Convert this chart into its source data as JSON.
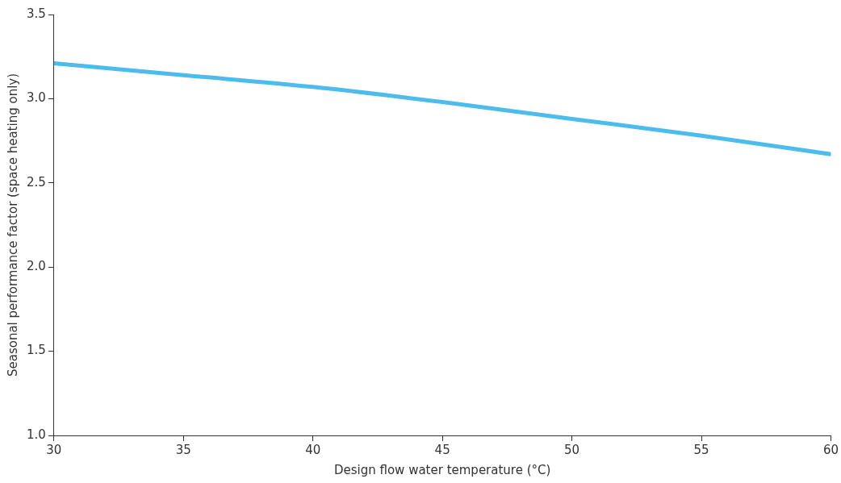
{
  "chart_data": {
    "type": "line",
    "xlabel": "Design flow water temperature (°C)",
    "ylabel": "Seasonal performance factor (space heating only)",
    "x": [
      30,
      35,
      40,
      45,
      50,
      55,
      60
    ],
    "series": [
      {
        "color": "#4bbcec",
        "values": [
          3.21,
          3.14,
          3.07,
          2.98,
          2.88,
          2.78,
          2.67
        ]
      }
    ],
    "xlim": [
      30,
      60
    ],
    "xticks": [
      30,
      35,
      40,
      45,
      50,
      55,
      60
    ],
    "ylim": [
      1.0,
      3.5
    ],
    "yticks": [
      {
        "value": 1.0,
        "label": "1.0"
      },
      {
        "value": 1.5,
        "label": "1.5"
      },
      {
        "value": 2.0,
        "label": "2.0"
      },
      {
        "value": 2.5,
        "label": "2.5"
      },
      {
        "value": 3.0,
        "label": "3.0"
      },
      {
        "value": 3.5,
        "label": "3.5"
      }
    ],
    "grid": false,
    "legend": false,
    "marker": "none",
    "line_style": "solid"
  }
}
